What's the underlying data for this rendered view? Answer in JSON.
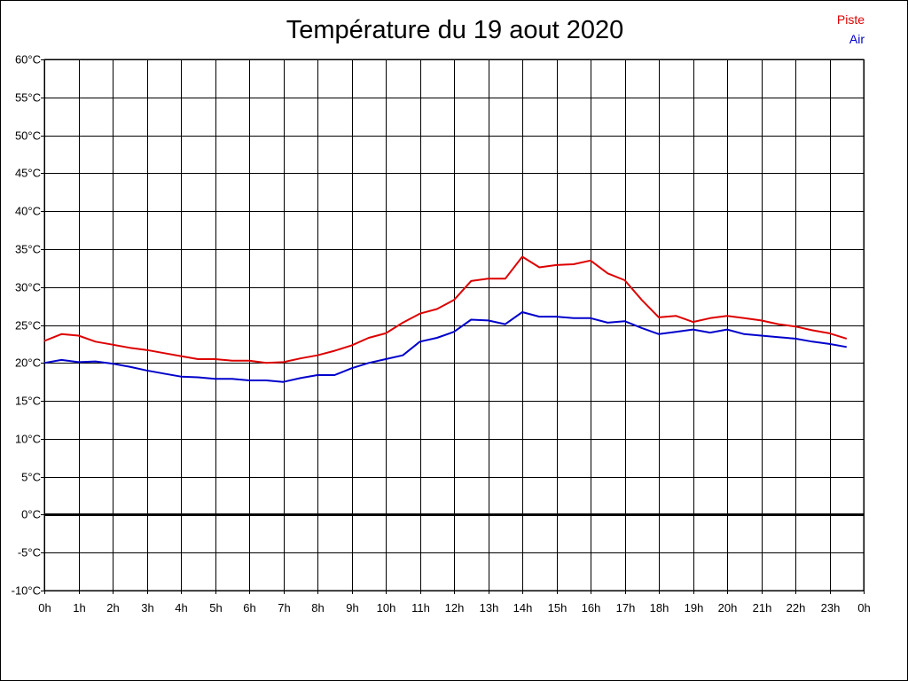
{
  "chart_data": {
    "type": "line",
    "title": "Température du 19 aout 2020",
    "xlabel": "",
    "ylabel": "",
    "ylim": [
      -10,
      60
    ],
    "y_ticks": [
      {
        "value": 60,
        "label": "60°C"
      },
      {
        "value": 55,
        "label": "55°C"
      },
      {
        "value": 50,
        "label": "50°C"
      },
      {
        "value": 45,
        "label": "45°C"
      },
      {
        "value": 40,
        "label": "40°C"
      },
      {
        "value": 35,
        "label": "35°C"
      },
      {
        "value": 30,
        "label": "30°C"
      },
      {
        "value": 25,
        "label": "25°C"
      },
      {
        "value": 20,
        "label": "20°C"
      },
      {
        "value": 15,
        "label": "15°C"
      },
      {
        "value": 10,
        "label": "10°C"
      },
      {
        "value": 5,
        "label": "5°C"
      },
      {
        "value": 0,
        "label": "0°C"
      },
      {
        "value": -5,
        "label": "-5°C"
      },
      {
        "value": -10,
        "label": "-10°C"
      }
    ],
    "x_tick_labels": [
      "0h",
      "1h",
      "2h",
      "3h",
      "4h",
      "5h",
      "6h",
      "7h",
      "8h",
      "9h",
      "10h",
      "11h",
      "12h",
      "13h",
      "14h",
      "15h",
      "16h",
      "17h",
      "18h",
      "19h",
      "20h",
      "21h",
      "22h",
      "23h",
      "0h"
    ],
    "grid": true,
    "legend_position": "top-right",
    "x": [
      0,
      0.5,
      1,
      1.5,
      2,
      2.5,
      3,
      3.5,
      4,
      4.5,
      5,
      5.5,
      6,
      6.5,
      7,
      7.5,
      8,
      8.5,
      9,
      9.5,
      10,
      10.5,
      11,
      11.5,
      12,
      12.5,
      13,
      13.5,
      14,
      14.5,
      15,
      15.5,
      16,
      16.5,
      17,
      17.5,
      18,
      18.5,
      19,
      19.5,
      20,
      20.5,
      21,
      21.5,
      22,
      22.5,
      23,
      23.5
    ],
    "series": [
      {
        "name": "Piste",
        "color": "#dd0000",
        "values": [
          22.9,
          23.8,
          23.6,
          22.8,
          22.4,
          22.0,
          21.7,
          21.3,
          20.9,
          20.5,
          20.5,
          20.3,
          20.3,
          20.0,
          20.1,
          20.6,
          21.0,
          21.6,
          22.3,
          23.3,
          23.9,
          25.3,
          26.5,
          27.1,
          28.3,
          30.8,
          31.1,
          31.1,
          34.0,
          32.6,
          32.9,
          33.0,
          33.5,
          31.8,
          30.9,
          28.3,
          26.0,
          26.2,
          25.4,
          25.9,
          26.2,
          25.9,
          25.6,
          25.1,
          24.8,
          24.3,
          23.9,
          23.2
        ]
      },
      {
        "name": "Air",
        "color": "#0000cc",
        "values": [
          20.0,
          20.4,
          20.1,
          20.2,
          19.9,
          19.5,
          19.0,
          18.6,
          18.2,
          18.1,
          17.9,
          17.9,
          17.7,
          17.7,
          17.5,
          18.0,
          18.4,
          18.4,
          19.3,
          20.0,
          20.5,
          21.0,
          22.8,
          23.3,
          24.1,
          25.7,
          25.6,
          25.1,
          26.7,
          26.1,
          26.1,
          25.9,
          25.9,
          25.3,
          25.5,
          24.6,
          23.8,
          24.1,
          24.4,
          24.0,
          24.4,
          23.8,
          23.6,
          23.4,
          23.2,
          22.8,
          22.5,
          22.1
        ]
      }
    ]
  }
}
